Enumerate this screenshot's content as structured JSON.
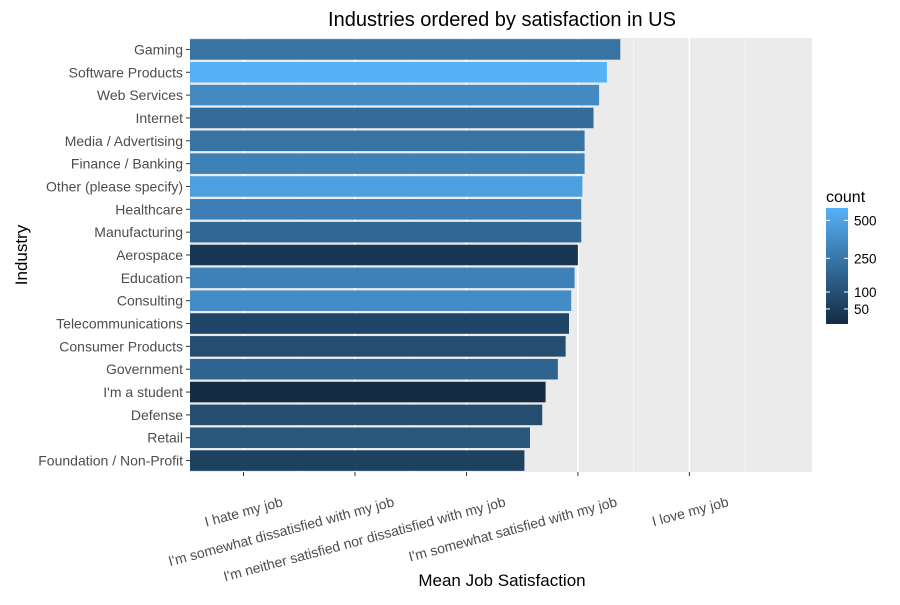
{
  "chart_data": {
    "type": "bar",
    "orientation": "horizontal",
    "title": "Industries ordered by satisfaction in US",
    "xlabel": "Mean Job Satisfaction",
    "ylabel": "Industry",
    "xlim": [
      0.52,
      6.1
    ],
    "xticks": [
      {
        "value": 1,
        "label": "I hate my job"
      },
      {
        "value": 2,
        "label": "I'm somewhat dissatisfied with my job"
      },
      {
        "value": 3,
        "label": "I'm neither satisfied nor dissatisfied with my job"
      },
      {
        "value": 4,
        "label": "I'm somewhat satisfied with my job"
      },
      {
        "value": 5,
        "label": "I love my job"
      }
    ],
    "categories": [
      "Gaming",
      "Software Products",
      "Web Services",
      "Internet",
      "Media / Advertising",
      "Finance / Banking",
      "Other (please specify)",
      "Healthcare",
      "Manufacturing",
      "Aerospace",
      "Education",
      "Consulting",
      "Telecommunications",
      "Consumer Products",
      "Government",
      "I'm a student",
      "Defense",
      "Retail",
      "Foundation / Non-Profit"
    ],
    "values": [
      4.38,
      4.26,
      4.19,
      4.14,
      4.06,
      4.06,
      4.04,
      4.03,
      4.03,
      4.0,
      3.97,
      3.94,
      3.92,
      3.89,
      3.82,
      3.71,
      3.68,
      3.57,
      3.52
    ],
    "counts": [
      230,
      600,
      350,
      200,
      230,
      300,
      480,
      290,
      180,
      40,
      300,
      360,
      70,
      90,
      170,
      20,
      90,
      120,
      60
    ],
    "legend": {
      "title": "count",
      "placement": "right",
      "ticks": [
        500,
        250,
        100,
        50
      ],
      "min": 20,
      "max": 600,
      "low_color": "#132B43",
      "high_color": "#56B1F7"
    },
    "grid": true,
    "panel_color": "#EBEBEB"
  }
}
